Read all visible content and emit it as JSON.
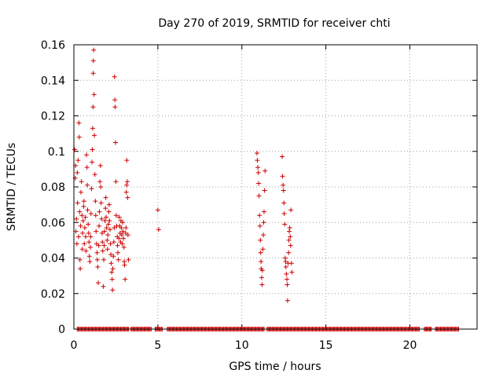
{
  "chart_data": {
    "type": "scatter",
    "title": "Day 270 of 2019, SRMTID for receiver chti",
    "xlabel": "GPS time / hours",
    "ylabel": "SRMTID / TECUs",
    "xlim": [
      0,
      24
    ],
    "ylim": [
      0,
      0.16
    ],
    "grid": true,
    "marker": "+",
    "color": "#cc0000",
    "x_ticks": [
      0,
      5,
      10,
      15,
      20
    ],
    "x_tick_labels": [
      "0",
      "5",
      "10",
      "15",
      "20"
    ],
    "y_ticks": [
      0,
      0.02,
      0.04,
      0.06,
      0.08,
      0.1,
      0.12,
      0.14,
      0.16
    ],
    "y_tick_labels": [
      "0",
      "0.02",
      "0.04",
      "0.06",
      "0.08",
      "0.1",
      "0.12",
      "0.14",
      "0.16"
    ],
    "series": [
      {
        "name": "SRMTID",
        "points": [
          [
            0.05,
            0.101
          ],
          [
            0.08,
            0.085
          ],
          [
            0.1,
            0.092
          ],
          [
            0.12,
            0.055
          ],
          [
            0.15,
            0.062
          ],
          [
            0.18,
            0.048
          ],
          [
            0.2,
            0.088
          ],
          [
            0.22,
            0.071
          ],
          [
            0.25,
            0.095
          ],
          [
            0.28,
            0.052
          ],
          [
            0.3,
            0.116
          ],
          [
            0.32,
            0.108
          ],
          [
            0.34,
            0.066
          ],
          [
            0.36,
            0.039
          ],
          [
            0.38,
            0.034
          ],
          [
            0.4,
            0.058
          ],
          [
            0.42,
            0.077
          ],
          [
            0.45,
            0.083
          ],
          [
            0.48,
            0.064
          ],
          [
            0.5,
            0.045
          ],
          [
            0.52,
            0.054
          ],
          [
            0.55,
            0.061
          ],
          [
            0.58,
            0.069
          ],
          [
            0.6,
            0.072
          ],
          [
            0.62,
            0.048
          ],
          [
            0.65,
            0.057
          ],
          [
            0.68,
            0.063
          ],
          [
            0.7,
            0.052
          ],
          [
            0.72,
            0.044
          ],
          [
            0.75,
            0.098
          ],
          [
            0.78,
            0.091
          ],
          [
            0.8,
            0.081
          ],
          [
            0.82,
            0.067
          ],
          [
            0.85,
            0.059
          ],
          [
            0.88,
            0.054
          ],
          [
            0.9,
            0.049
          ],
          [
            0.92,
            0.041
          ],
          [
            0.95,
            0.038
          ],
          [
            0.98,
            0.046
          ],
          [
            1.0,
            0.052
          ],
          [
            1.02,
            0.065
          ],
          [
            1.05,
            0.079
          ],
          [
            1.08,
            0.094
          ],
          [
            1.1,
            0.101
          ],
          [
            1.12,
            0.113
          ],
          [
            1.14,
            0.125
          ],
          [
            1.15,
            0.144
          ],
          [
            1.16,
            0.151
          ],
          [
            1.18,
            0.157
          ],
          [
            1.2,
            0.132
          ],
          [
            1.22,
            0.109
          ],
          [
            1.25,
            0.087
          ],
          [
            1.28,
            0.072
          ],
          [
            1.3,
            0.064
          ],
          [
            1.32,
            0.055
          ],
          [
            1.35,
            0.048
          ],
          [
            1.38,
            0.043
          ],
          [
            1.4,
            0.039
          ],
          [
            1.42,
            0.035
          ],
          [
            1.45,
            0.026
          ],
          [
            1.48,
            0.047
          ],
          [
            1.5,
            0.058
          ],
          [
            1.52,
            0.066
          ],
          [
            1.55,
            0.083
          ],
          [
            1.58,
            0.092
          ],
          [
            1.6,
            0.08
          ],
          [
            1.62,
            0.071
          ],
          [
            1.65,
            0.062
          ],
          [
            1.68,
            0.054
          ],
          [
            1.7,
            0.049
          ],
          [
            1.72,
            0.044
          ],
          [
            1.75,
            0.024
          ],
          [
            1.78,
            0.039
          ],
          [
            1.8,
            0.047
          ],
          [
            1.82,
            0.055
          ],
          [
            1.85,
            0.061
          ],
          [
            1.88,
            0.068
          ],
          [
            1.9,
            0.074
          ],
          [
            1.92,
            0.063
          ],
          [
            1.95,
            0.057
          ],
          [
            1.98,
            0.05
          ],
          [
            2.0,
            0.045
          ],
          [
            2.02,
            0.053
          ],
          [
            2.05,
            0.059
          ],
          [
            2.08,
            0.066
          ],
          [
            2.1,
            0.07
          ],
          [
            2.12,
            0.061
          ],
          [
            2.15,
            0.056
          ],
          [
            2.18,
            0.048
          ],
          [
            2.2,
            0.042
          ],
          [
            2.22,
            0.037
          ],
          [
            2.25,
            0.032
          ],
          [
            2.28,
            0.028
          ],
          [
            2.3,
            0.022
          ],
          [
            2.32,
            0.034
          ],
          [
            2.35,
            0.041
          ],
          [
            2.38,
            0.049
          ],
          [
            2.4,
            0.057
          ],
          [
            2.42,
            0.142
          ],
          [
            2.44,
            0.129
          ],
          [
            2.45,
            0.125
          ],
          [
            2.48,
            0.105
          ],
          [
            2.5,
            0.083
          ],
          [
            2.52,
            0.064
          ],
          [
            2.55,
            0.058
          ],
          [
            2.58,
            0.052
          ],
          [
            2.6,
            0.047
          ],
          [
            2.62,
            0.043
          ],
          [
            2.65,
            0.039
          ],
          [
            2.68,
            0.051
          ],
          [
            2.7,
            0.063
          ],
          [
            2.72,
            0.058
          ],
          [
            2.75,
            0.054
          ],
          [
            2.78,
            0.049
          ],
          [
            2.8,
            0.061
          ],
          [
            2.82,
            0.057
          ],
          [
            2.85,
            0.053
          ],
          [
            2.88,
            0.048
          ],
          [
            2.9,
            0.06
          ],
          [
            2.92,
            0.055
          ],
          [
            2.95,
            0.051
          ],
          [
            2.98,
            0.046
          ],
          [
            3.0,
            0.038
          ],
          [
            3.02,
            0.036
          ],
          [
            3.05,
            0.028
          ],
          [
            3.08,
            0.054
          ],
          [
            3.1,
            0.057
          ],
          [
            3.12,
            0.077
          ],
          [
            3.14,
            0.081
          ],
          [
            3.15,
            0.095
          ],
          [
            3.18,
            0.083
          ],
          [
            3.2,
            0.074
          ],
          [
            3.22,
            0.053
          ],
          [
            3.25,
            0.039
          ],
          [
            5.0,
            0.067
          ],
          [
            5.05,
            0.056
          ],
          [
            10.9,
            0.099
          ],
          [
            10.92,
            0.095
          ],
          [
            10.95,
            0.091
          ],
          [
            10.98,
            0.088
          ],
          [
            11.0,
            0.082
          ],
          [
            11.02,
            0.075
          ],
          [
            11.05,
            0.064
          ],
          [
            11.08,
            0.058
          ],
          [
            11.1,
            0.05
          ],
          [
            11.12,
            0.043
          ],
          [
            11.14,
            0.038
          ],
          [
            11.15,
            0.034
          ],
          [
            11.18,
            0.029
          ],
          [
            11.2,
            0.025
          ],
          [
            11.22,
            0.033
          ],
          [
            11.25,
            0.045
          ],
          [
            11.28,
            0.053
          ],
          [
            11.3,
            0.06
          ],
          [
            11.32,
            0.066
          ],
          [
            11.35,
            0.078
          ],
          [
            11.38,
            0.089
          ],
          [
            12.4,
            0.097
          ],
          [
            12.42,
            0.086
          ],
          [
            12.45,
            0.081
          ],
          [
            12.48,
            0.078
          ],
          [
            12.5,
            0.071
          ],
          [
            12.52,
            0.065
          ],
          [
            12.55,
            0.059
          ],
          [
            12.58,
            0.04
          ],
          [
            12.6,
            0.038
          ],
          [
            12.62,
            0.035
          ],
          [
            12.65,
            0.031
          ],
          [
            12.68,
            0.028
          ],
          [
            12.7,
            0.025
          ],
          [
            12.72,
            0.016
          ],
          [
            12.75,
            0.037
          ],
          [
            12.78,
            0.043
          ],
          [
            12.8,
            0.05
          ],
          [
            12.82,
            0.055
          ],
          [
            12.85,
            0.057
          ],
          [
            12.88,
            0.052
          ],
          [
            12.9,
            0.047
          ],
          [
            12.92,
            0.067
          ],
          [
            12.95,
            0.037
          ],
          [
            12.98,
            0.032
          ]
        ]
      }
    ]
  }
}
